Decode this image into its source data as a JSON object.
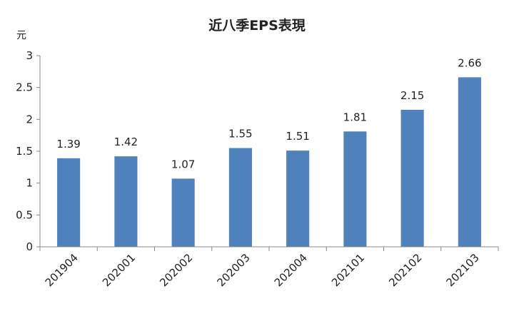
{
  "chart_data": {
    "type": "bar",
    "title": "近八季EPS表現",
    "unit_label": "元",
    "categories": [
      "201904",
      "202001",
      "202002",
      "202003",
      "202004",
      "202101",
      "202102",
      "202103"
    ],
    "values": [
      1.39,
      1.42,
      1.07,
      1.55,
      1.51,
      1.81,
      2.15,
      2.66
    ],
    "data_labels": [
      "1.39",
      "1.42",
      "1.07",
      "1.55",
      "1.51",
      "1.81",
      "2.15",
      "2.66"
    ],
    "yticks": [
      "0",
      "0.5",
      "1",
      "1.5",
      "2",
      "2.5",
      "3"
    ],
    "ylim": [
      0,
      3
    ],
    "grid": false,
    "legend": "none",
    "bar_color": "#4f81bd"
  }
}
